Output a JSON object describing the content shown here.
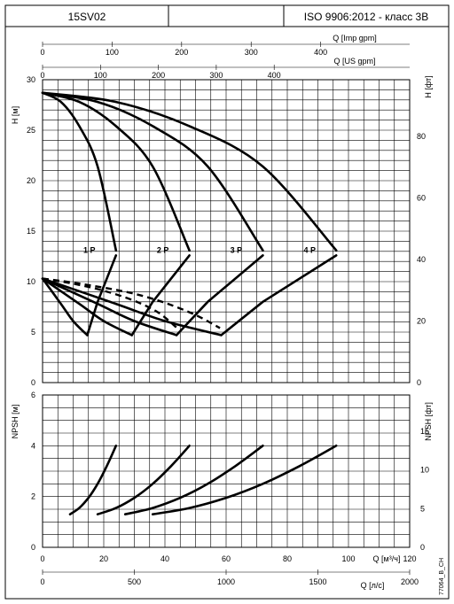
{
  "header": {
    "model": "15SV02",
    "middle": "",
    "standard": "ISO 9906:2012 - класс 3B"
  },
  "side_code": "77064_B_CH",
  "chart_data": [
    {
      "type": "line",
      "name": "H-Q",
      "ylabel": "H [м]",
      "ylabel_right": "H [фт]",
      "ylim": [
        0,
        30
      ],
      "yticks": [
        0,
        5,
        10,
        15,
        20,
        25,
        30
      ],
      "ylim_right": [
        0,
        98.43
      ],
      "yticks_right": [
        0,
        20,
        40,
        60,
        80
      ],
      "top_axes": [
        {
          "label": "Q [Imp gpm]",
          "ticks": [
            0,
            100,
            200,
            300,
            400
          ],
          "max": 528
        },
        {
          "label": "Q [US gpm]",
          "ticks": [
            0,
            100,
            200,
            300,
            400
          ],
          "max": 634
        }
      ],
      "x_unit": "Q [м³/ч]",
      "xlim": [
        0,
        120
      ],
      "grid": true,
      "series": [
        {
          "name": "1 P",
          "x": [
            0,
            6,
            12,
            18,
            24
          ],
          "y": [
            28.7,
            27.8,
            25.4,
            21.4,
            13.1
          ]
        },
        {
          "name": "2 P",
          "x": [
            0,
            12,
            24,
            36,
            48
          ],
          "y": [
            28.7,
            27.8,
            25.4,
            21.4,
            13.1
          ]
        },
        {
          "name": "3 P",
          "x": [
            0,
            18,
            36,
            54,
            72
          ],
          "y": [
            28.7,
            27.8,
            25.4,
            21.4,
            13.1
          ]
        },
        {
          "name": "4 P",
          "x": [
            0,
            24,
            48,
            72,
            96
          ],
          "y": [
            28.7,
            27.8,
            25.4,
            21.4,
            13.1
          ]
        }
      ],
      "efficiency_series": [
        {
          "x": [
            0,
            6,
            10,
            14.6,
            18,
            24
          ],
          "y": [
            10.3,
            7.8,
            6.1,
            4.7,
            8.0,
            12.6
          ]
        },
        {
          "x": [
            0,
            12,
            20,
            29.2,
            36,
            48
          ],
          "y": [
            10.3,
            7.8,
            6.1,
            4.7,
            8.0,
            12.6
          ]
        },
        {
          "x": [
            0,
            18,
            30,
            43.8,
            54,
            72
          ],
          "y": [
            10.3,
            7.8,
            6.1,
            4.7,
            8.0,
            12.6
          ]
        },
        {
          "x": [
            0,
            24,
            40,
            58.4,
            72,
            96
          ],
          "y": [
            10.3,
            7.8,
            6.1,
            4.7,
            8.0,
            12.6
          ]
        }
      ],
      "dashed_series": [
        {
          "x": [
            0,
            10,
            20,
            30,
            40,
            50,
            58
          ],
          "y": [
            10.3,
            9.9,
            9.4,
            8.8,
            7.9,
            6.7,
            5.4
          ]
        },
        {
          "x": [
            0,
            10,
            20,
            30,
            38,
            44
          ],
          "y": [
            10.3,
            9.8,
            9.1,
            8.1,
            6.9,
            5.4
          ]
        }
      ]
    },
    {
      "type": "line",
      "name": "NPSH",
      "ylabel": "NPSH [м]",
      "ylabel_right": "NPSH [фт]",
      "ylim": [
        0,
        6
      ],
      "yticks": [
        0,
        2,
        4,
        6
      ],
      "ylim_right": [
        0,
        19.69
      ],
      "yticks_right": [
        0,
        5,
        10,
        15
      ],
      "xlabel": "Q [м³/ч]",
      "xticks": [
        0,
        20,
        40,
        60,
        80,
        100,
        120
      ],
      "xlim": [
        0,
        120
      ],
      "bottom_axis": {
        "label": "Q [л/с]",
        "ticks": [
          0,
          500,
          1000,
          1500,
          2000
        ],
        "max": 2000
      },
      "grid": true,
      "series": [
        {
          "name": "1 P",
          "x": [
            9,
            12,
            15,
            18,
            21,
            24
          ],
          "y": [
            1.3,
            1.55,
            1.95,
            2.5,
            3.2,
            4.0
          ]
        },
        {
          "name": "2 P",
          "x": [
            18,
            24,
            30,
            36,
            42,
            48
          ],
          "y": [
            1.3,
            1.55,
            1.95,
            2.5,
            3.2,
            4.0
          ]
        },
        {
          "name": "3 P",
          "x": [
            27,
            36,
            45,
            54,
            63,
            72
          ],
          "y": [
            1.3,
            1.55,
            1.95,
            2.5,
            3.2,
            4.0
          ]
        },
        {
          "name": "4 P",
          "x": [
            36,
            48,
            60,
            72,
            84,
            96
          ],
          "y": [
            1.3,
            1.55,
            1.95,
            2.5,
            3.2,
            4.0
          ]
        }
      ]
    }
  ]
}
